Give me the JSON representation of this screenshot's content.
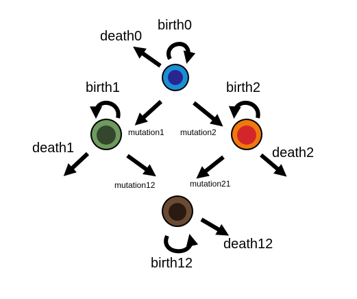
{
  "diagram": {
    "labels": {
      "birth0": "birth0",
      "death0": "death0",
      "birth1": "birth1",
      "death1": "death1",
      "birth2": "birth2",
      "death2": "death2",
      "mutation1": "mutation1",
      "mutation2": "mutation2",
      "mutation12": "mutation12",
      "mutation21": "mutation21",
      "birth12": "birth12",
      "death12": "death12"
    },
    "colors": {
      "cell0": {
        "outer": "#1b8fd6",
        "inner": "#2a2690"
      },
      "cell1": {
        "outer": "#6e9a5e",
        "inner": "#34472c"
      },
      "cell2": {
        "outer": "#f0780e",
        "inner": "#d2262a"
      },
      "cell12": {
        "outer": "#6b4a33",
        "inner": "#2a1a12"
      }
    }
  }
}
